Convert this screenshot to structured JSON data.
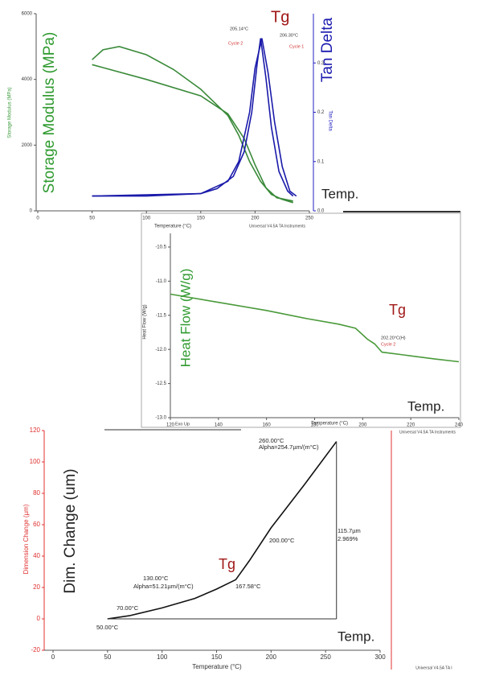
{
  "chart_data": [
    {
      "type": "line",
      "x_label": "Temperature (°C)",
      "y_label": "Storage Modulus (MPa)",
      "y2_label": "Tan Delta",
      "y_label_color": "#3a9a3a",
      "y2_label_color": "#2020c0",
      "footer": "Universal V4.5A TA Instruments",
      "xlim": [
        0,
        250
      ],
      "xticks": [
        0,
        50,
        100,
        150,
        200,
        250
      ],
      "ylim": [
        0,
        6000
      ],
      "yticks": [
        0,
        2000,
        4000,
        6000
      ],
      "y2lim": [
        0,
        0.4
      ],
      "y2ticks": [
        {
          "value": 0,
          "label": "0.0"
        },
        0.1,
        0.2,
        0.3
      ],
      "series": [
        {
          "color": "#3a8a3a",
          "x": [
            50,
            60,
            75,
            100,
            125,
            150,
            175,
            185,
            195,
            205,
            215,
            225,
            235
          ],
          "values": [
            4600,
            4900,
            5000,
            4750,
            4300,
            3700,
            2900,
            2300,
            1500,
            900,
            500,
            350,
            250
          ]
        },
        {
          "color": "#3a8a3a",
          "x": [
            50,
            100,
            150,
            175,
            190,
            200,
            210,
            220,
            235
          ],
          "values": [
            4450,
            4000,
            3500,
            2950,
            2200,
            1400,
            700,
            400,
            300
          ]
        },
        {
          "color": "#1a1aaa",
          "axis": "y2",
          "x": [
            50,
            100,
            150,
            175,
            185,
            195,
            200,
            206.3,
            212,
            218,
            225,
            232,
            238
          ],
          "values": [
            0.03,
            0.03,
            0.035,
            0.06,
            0.1,
            0.2,
            0.29,
            0.35,
            0.28,
            0.18,
            0.09,
            0.04,
            0.03
          ]
        },
        {
          "color": "#1a1aaa",
          "axis": "y2",
          "x": [
            50,
            150,
            165,
            180,
            190,
            197,
            202,
            205.14,
            210,
            215,
            222,
            230,
            235
          ],
          "values": [
            0.03,
            0.035,
            0.045,
            0.07,
            0.12,
            0.2,
            0.3,
            0.35,
            0.27,
            0.17,
            0.08,
            0.04,
            0.03
          ]
        }
      ],
      "annotations": [
        {
          "text": "205.14°C",
          "color": "#333333"
        },
        {
          "text": "206.30°C",
          "color": "#333333"
        },
        {
          "text": "Cycle 2",
          "color": "#d03030"
        },
        {
          "text": "Cycle 1",
          "color": "#d03030"
        }
      ],
      "callouts": [
        {
          "text": "Tg",
          "color": "#a01818"
        },
        {
          "text": "Storage Modulus (MPa)",
          "color": "#2e9a2e"
        },
        {
          "text": "Tan Delta",
          "color": "#1a1ab0"
        },
        {
          "text": "Temp.",
          "color": "#222222"
        }
      ]
    },
    {
      "type": "line",
      "x_label": "Temperature (°C)",
      "y_label": "Heat Flow (W/g)",
      "y_label_color": "#333333",
      "footer": "Universal V4.5A TA Instruments",
      "xlim": [
        120,
        240
      ],
      "xticks": [
        120,
        140,
        160,
        180,
        200,
        220,
        240
      ],
      "ylim": [
        -13,
        -10.3
      ],
      "yticks": [
        -10.5,
        {
          "value": -11,
          "label": "-11.0"
        },
        -11.5,
        {
          "value": -12,
          "label": "-12.0"
        },
        -12.5,
        {
          "value": -13,
          "label": "-13.0"
        }
      ],
      "series": [
        {
          "color": "#4a9a3a",
          "x": [
            120,
            140,
            160,
            177,
            190,
            197,
            202,
            205,
            208,
            217,
            230,
            240
          ],
          "values": [
            -11.19,
            -11.31,
            -11.43,
            -11.55,
            -11.63,
            -11.69,
            -11.85,
            -11.92,
            -12.04,
            -12.08,
            -12.14,
            -12.18
          ]
        }
      ],
      "annotations": [
        {
          "text": "Exo Up",
          "color": "#333333"
        },
        {
          "text": "202.20°C(H)",
          "color": "#333333"
        },
        {
          "text": "Cycle 2",
          "color": "#d03030"
        }
      ],
      "callouts": [
        {
          "text": "Heat Flow (W/g)",
          "color": "#2e9a2e"
        },
        {
          "text": "Tg",
          "color": "#a01818"
        },
        {
          "text": "Temp.",
          "color": "#222222"
        }
      ]
    },
    {
      "type": "line",
      "x_label": "Temperature (°C)",
      "y_label": "Dimension Change (µm)",
      "y_label_color": "#e03030",
      "ytick_color": "#e03030",
      "footer": "Universal V4.5A TA I",
      "xlim": [
        0,
        300
      ],
      "xticks": [
        0,
        50,
        100,
        150,
        200,
        250,
        300
      ],
      "ylim": [
        -20,
        120
      ],
      "yticks": [
        -20,
        0,
        20,
        40,
        60,
        80,
        100,
        120
      ],
      "series": [
        {
          "color": "#111111",
          "x": [
            50,
            70,
            100,
            130,
            150,
            167.58,
            180,
            200,
            230,
            260
          ],
          "values": [
            0,
            2,
            7,
            13,
            19,
            25,
            37,
            58,
            85,
            113
          ]
        }
      ],
      "annotations": [
        {
          "text": "50.00°C",
          "color": "#222222"
        },
        {
          "text": "70.00°C",
          "color": "#222222"
        },
        {
          "text": "130.00°C",
          "color": "#222222"
        },
        {
          "text": "Alpha=51.21µm/(m°C)",
          "color": "#222222"
        },
        {
          "text": "167.58°C",
          "color": "#222222"
        },
        {
          "text": "200.00°C",
          "color": "#222222"
        },
        {
          "text": "260.00°C",
          "color": "#222222"
        },
        {
          "text": "Alpha=254.7µm/(m°C)",
          "color": "#222222"
        },
        {
          "text": "115.7µm",
          "color": "#222222"
        },
        {
          "text": "2.969%",
          "color": "#222222"
        }
      ],
      "callouts": [
        {
          "text": "Dim. Change (um)",
          "color": "#222222"
        },
        {
          "text": "Tg",
          "color": "#a01818"
        },
        {
          "text": "Temp.",
          "color": "#222222"
        }
      ]
    }
  ]
}
